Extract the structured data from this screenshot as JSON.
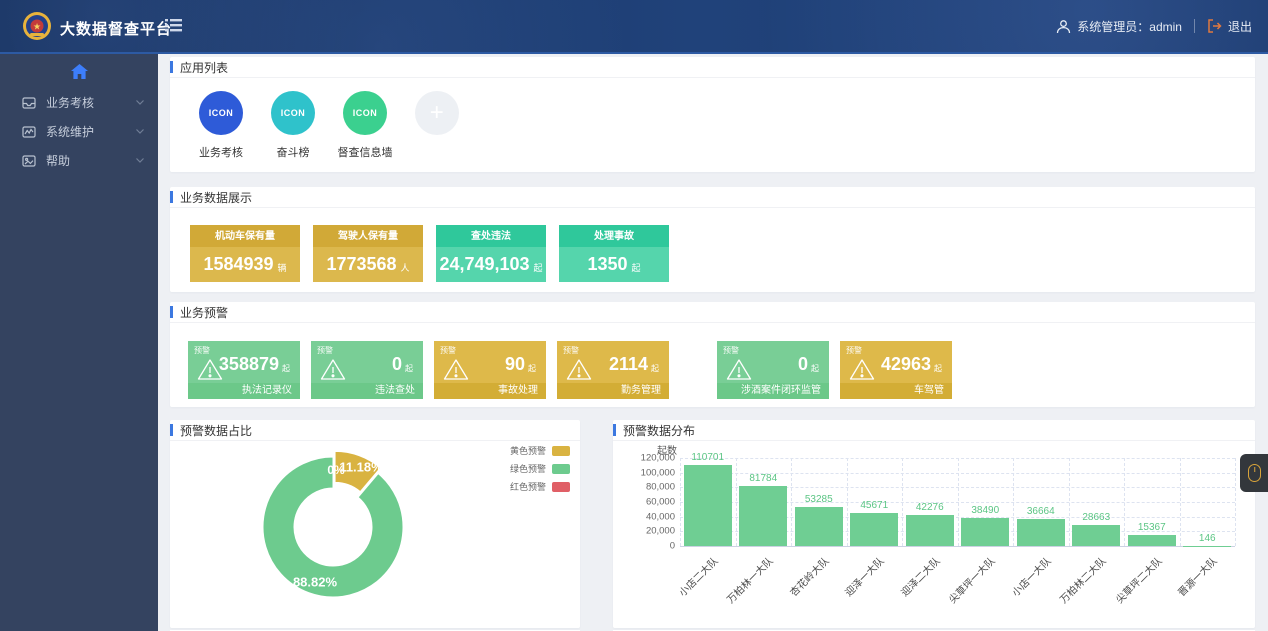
{
  "header": {
    "title": "大数据督查平台",
    "user_prefix": "系统管理员：",
    "username": "admin",
    "logout": "退出"
  },
  "sidebar": {
    "items": [
      {
        "label": "业务考核",
        "icon": "inbox-icon"
      },
      {
        "label": "系统维护",
        "icon": "monitor-icon"
      },
      {
        "label": "帮助",
        "icon": "help-icon"
      }
    ]
  },
  "sections": {
    "apps": "应用列表",
    "stats": "业务数据展示",
    "warnings": "业务预警",
    "pie": "预警数据占比",
    "bars": "预警数据分布"
  },
  "apps": {
    "items": [
      {
        "icon_text": "ICON",
        "label": "业务考核",
        "color": "#2e5bd8"
      },
      {
        "icon_text": "ICON",
        "label": "奋斗榜",
        "color": "#2fc2cb"
      },
      {
        "icon_text": "ICON",
        "label": "督查信息墙",
        "color": "#3bd08f"
      }
    ],
    "add_label": "+"
  },
  "stats": {
    "cards": [
      {
        "title": "机动车保有量",
        "value": "1584939",
        "unit": "辆",
        "theme": "yellow"
      },
      {
        "title": "驾驶人保有量",
        "value": "1773568",
        "unit": "人",
        "theme": "yellow"
      },
      {
        "title": "查处违法",
        "value": "24,749,103",
        "unit": "起",
        "theme": "green"
      },
      {
        "title": "处理事故",
        "value": "1350",
        "unit": "起",
        "theme": "green"
      }
    ]
  },
  "warnings": {
    "badge": "预警",
    "unit": "起",
    "cards": [
      {
        "value": "358879",
        "category": "执法记录仪",
        "theme": "green"
      },
      {
        "value": "0",
        "category": "违法查处",
        "theme": "green"
      },
      {
        "value": "90",
        "category": "事故处理",
        "theme": "yellow"
      },
      {
        "value": "2114",
        "category": "勤务管理",
        "theme": "yellow"
      },
      {
        "value": "0",
        "category": "涉酒案件闭环监管",
        "theme": "green"
      },
      {
        "value": "42963",
        "category": "车驾管",
        "theme": "yellow"
      }
    ]
  },
  "chart_data": [
    {
      "type": "pie",
      "title": "预警数据占比",
      "donut": true,
      "legend_position": "top-right",
      "slices": [
        {
          "label": "黄色预警",
          "pct": 11.18,
          "pct_label": "11.18%",
          "color": "#d9b341"
        },
        {
          "label": "绿色预警",
          "pct": 88.82,
          "pct_label": "88.82%",
          "color": "#6dcb8e"
        },
        {
          "label": "红色预警",
          "pct": 0,
          "pct_label": "0%",
          "color": "#e05f66"
        }
      ]
    },
    {
      "type": "bar",
      "title": "预警数据分布",
      "ylabel": "起数",
      "ylim": [
        0,
        120000
      ],
      "ytick_step": 20000,
      "ytick_labels": [
        "0",
        "20,000",
        "40,000",
        "60,000",
        "80,000",
        "100,000",
        "120,000"
      ],
      "categories": [
        "小店二大队",
        "万柏林一大队",
        "杏花岭大队",
        "迎泽一大队",
        "迎泽二大队",
        "尖草坪一大队",
        "小店一大队",
        "万柏林二大队",
        "尖草坪二大队",
        "晋源一大队"
      ],
      "values": [
        110701,
        81784,
        53285,
        45671,
        42276,
        38490,
        36664,
        28663,
        15367,
        146
      ],
      "bar_color": "#6fce93",
      "grid": true,
      "legend_position": "none"
    }
  ]
}
